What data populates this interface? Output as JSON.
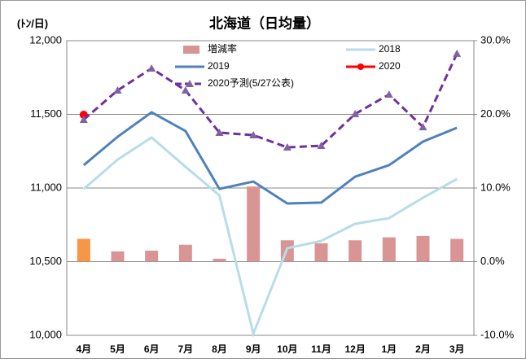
{
  "chart_data": {
    "type": "combo",
    "title": "北海道（日均量）",
    "y_label": "(ﾄﾝ/日)",
    "categories": [
      "4月",
      "5月",
      "6月",
      "7月",
      "8月",
      "9月",
      "10月",
      "11月",
      "12月",
      "1月",
      "2月",
      "3月"
    ],
    "ylim": [
      10000,
      12000
    ],
    "yticks": [
      {
        "value": 10000,
        "label": "10,000"
      },
      {
        "value": 10500,
        "label": "10,500"
      },
      {
        "value": 11000,
        "label": "11,000"
      },
      {
        "value": 11500,
        "label": "11,500"
      },
      {
        "value": 12000,
        "label": "12,000"
      }
    ],
    "y2lim": [
      -10,
      30
    ],
    "y2ticks": [
      {
        "value": -10,
        "label": "-10.0%"
      },
      {
        "value": 0,
        "label": "0.0%"
      },
      {
        "value": 10,
        "label": "10.0%"
      },
      {
        "value": 20,
        "label": "20.0%"
      },
      {
        "value": 30,
        "label": "30.0%"
      }
    ],
    "grid": true,
    "series": [
      {
        "name": "増減率",
        "kind": "bar",
        "axis": "y2",
        "color": "#d99594",
        "colors": [
          "#f79646",
          "#d99594",
          "#d99594",
          "#d99594",
          "#d99594",
          "#d99594",
          "#d99594",
          "#d99594",
          "#d99594",
          "#d99594",
          "#d99594",
          "#d99594"
        ],
        "values": [
          3.1,
          1.4,
          1.5,
          2.3,
          0.4,
          10.2,
          2.9,
          2.5,
          2.9,
          3.3,
          3.5,
          3.1
        ]
      },
      {
        "name": "2018",
        "kind": "line",
        "color": "#b7dde8",
        "values": [
          10994,
          11193,
          11343,
          11144,
          10950,
          10011,
          10591,
          10641,
          10757,
          10796,
          10934,
          11061
        ]
      },
      {
        "name": "2019",
        "kind": "line",
        "color": "#4f81bd",
        "values": [
          11155,
          11348,
          11514,
          11387,
          10994,
          11044,
          10895,
          10901,
          11077,
          11155,
          11315,
          11409
        ]
      },
      {
        "name": "2020",
        "kind": "dot",
        "color": "#ff0000",
        "values": [
          11497,
          null,
          null,
          null,
          null,
          null,
          null,
          null,
          null,
          null,
          null,
          null
        ]
      },
      {
        "name": "2020予測(5/27公表)",
        "kind": "dashed",
        "color": "#7030a0",
        "marker_color": "#8064a2",
        "values": [
          11464,
          11663,
          11812,
          11663,
          11376,
          11359,
          11276,
          11287,
          11503,
          11635,
          11414,
          11912
        ]
      }
    ]
  }
}
